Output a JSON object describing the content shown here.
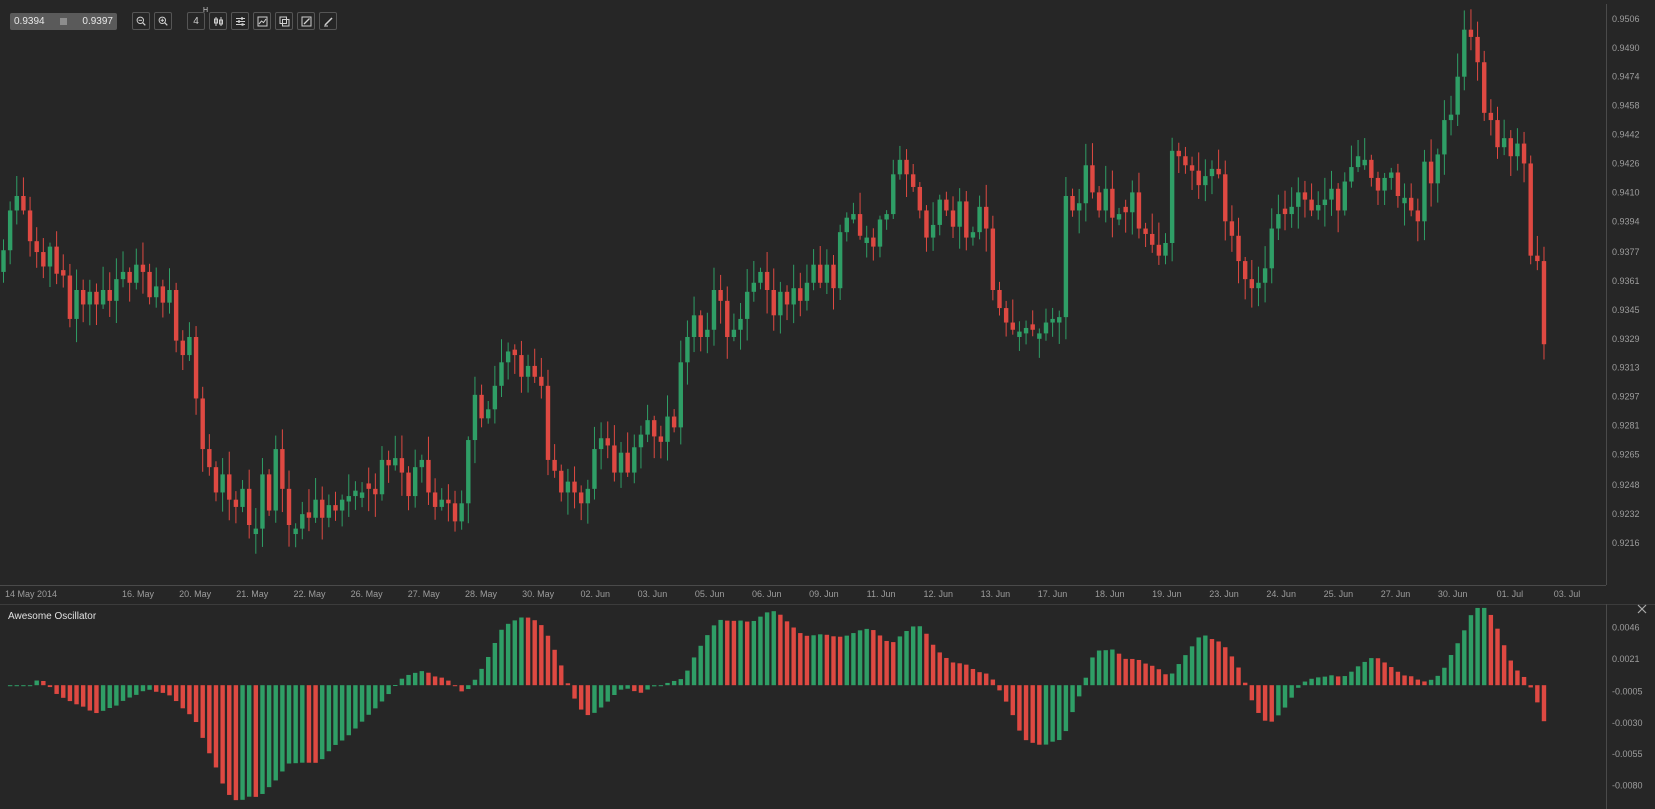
{
  "toolbar": {
    "bid": "0.9394",
    "ask": "0.9397",
    "timeframe_label": "4",
    "timeframe_suffix": "H",
    "icons": [
      "zoom-out-icon",
      "zoom-in-icon",
      "timeframe-button",
      "candles-icon",
      "indicators-icon",
      "chart-settings-icon",
      "templates-icon",
      "drawing-icon",
      "edit-drawing-icon"
    ]
  },
  "colors": {
    "up": "#2f9e66",
    "down": "#de4942",
    "background": "#262626",
    "axis_line": "#4a4a4a"
  },
  "chart_data": [
    {
      "type": "candlestick",
      "ylim": [
        0.92,
        0.9512
      ],
      "y_ticks": [
        "0.9506",
        "0.9490",
        "0.9474",
        "0.9458",
        "0.9442",
        "0.9426",
        "0.9410",
        "0.9394",
        "0.9377",
        "0.9361",
        "0.9345",
        "0.9329",
        "0.9313",
        "0.9297",
        "0.9281",
        "0.9265",
        "0.9248",
        "0.9232",
        "0.9216"
      ],
      "x_ticks": [
        "14 May 2014",
        "16. May",
        "20. May",
        "21. May",
        "22. May",
        "26. May",
        "27. May",
        "28. May",
        "30. May",
        "02. Jun",
        "03. Jun",
        "05. Jun",
        "06. Jun",
        "09. Jun",
        "11. Jun",
        "12. Jun",
        "13. Jun",
        "17. Jun",
        "18. Jun",
        "19. Jun",
        "23. Jun",
        "24. Jun",
        "25. Jun",
        "27. Jun",
        "30. Jun",
        "01. Jul",
        "03. Jul"
      ],
      "close": [
        0.9378,
        0.94,
        0.9408,
        0.94,
        0.9383,
        0.9377,
        0.9369,
        0.938,
        0.9365,
        0.9364,
        0.934,
        0.9356,
        0.9348,
        0.9355,
        0.9348,
        0.9356,
        0.935,
        0.9362,
        0.9366,
        0.936,
        0.937,
        0.9366,
        0.9352,
        0.9358,
        0.9349,
        0.9356,
        0.9328,
        0.932,
        0.933,
        0.9296,
        0.9268,
        0.9258,
        0.9244,
        0.9254,
        0.924,
        0.9236,
        0.9246,
        0.9226,
        0.9224,
        0.9254,
        0.9234,
        0.9268,
        0.9246,
        0.9226,
        0.9224,
        0.9232,
        0.923,
        0.924,
        0.923,
        0.9237,
        0.9234,
        0.924,
        0.9242,
        0.9245,
        0.9244,
        0.9246,
        0.9243,
        0.9262,
        0.9259,
        0.9263,
        0.9255,
        0.9242,
        0.9258,
        0.9262,
        0.9244,
        0.9236,
        0.924,
        0.9238,
        0.9228,
        0.9238,
        0.9273,
        0.9298,
        0.9285,
        0.929,
        0.9303,
        0.9316,
        0.9322,
        0.932,
        0.9308,
        0.9314,
        0.9308,
        0.9303,
        0.9262,
        0.9256,
        0.9244,
        0.925,
        0.9244,
        0.9238,
        0.9246,
        0.9268,
        0.9274,
        0.927,
        0.9255,
        0.9266,
        0.9255,
        0.9269,
        0.9276,
        0.9284,
        0.9275,
        0.9272,
        0.9286,
        0.928,
        0.9316,
        0.933,
        0.9342,
        0.933,
        0.9334,
        0.9356,
        0.935,
        0.933,
        0.9334,
        0.934,
        0.9355,
        0.936,
        0.9366,
        0.9356,
        0.9342,
        0.9355,
        0.9348,
        0.9357,
        0.935,
        0.936,
        0.937,
        0.936,
        0.937,
        0.9357,
        0.9388,
        0.9396,
        0.9398,
        0.9386,
        0.9385,
        0.938,
        0.9395,
        0.9398,
        0.942,
        0.9428,
        0.942,
        0.9413,
        0.94,
        0.9385,
        0.9392,
        0.9406,
        0.94,
        0.9391,
        0.9405,
        0.9385,
        0.9388,
        0.9402,
        0.939,
        0.9356,
        0.9346,
        0.9338,
        0.9334,
        0.9333,
        0.9335,
        0.9334,
        0.9332,
        0.9338,
        0.934,
        0.9341,
        0.9408,
        0.94,
        0.9404,
        0.9425,
        0.941,
        0.94,
        0.9412,
        0.9396,
        0.9398,
        0.9399,
        0.941,
        0.939,
        0.9387,
        0.9381,
        0.9375,
        0.9382,
        0.9433,
        0.943,
        0.9425,
        0.9422,
        0.9414,
        0.9419,
        0.9423,
        0.942,
        0.9394,
        0.9386,
        0.9372,
        0.9362,
        0.9357,
        0.936,
        0.9368,
        0.939,
        0.9398,
        0.9398,
        0.9402,
        0.941,
        0.9406,
        0.94,
        0.9403,
        0.9406,
        0.9412,
        0.94,
        0.9416,
        0.9424,
        0.943,
        0.9428,
        0.9418,
        0.9411,
        0.9418,
        0.9421,
        0.9408,
        0.9407,
        0.94,
        0.9394,
        0.9427,
        0.9415,
        0.9431,
        0.945,
        0.9453,
        0.9474,
        0.95,
        0.9496,
        0.9482,
        0.9454,
        0.945,
        0.9435,
        0.944,
        0.943,
        0.9437,
        0.9426,
        0.9375,
        0.9372,
        0.9326
      ],
      "first_candle": {
        "open": 0.9366,
        "high": 0.9384,
        "low": 0.936
      }
    },
    {
      "type": "bar",
      "title": "Awesome Oscillator",
      "ylim": [
        -0.0094,
        0.006
      ],
      "y_ticks": [
        "0.0046",
        "0.0021",
        "-0.0005",
        "-0.0030",
        "-0.0055",
        "-0.0080"
      ]
    }
  ]
}
